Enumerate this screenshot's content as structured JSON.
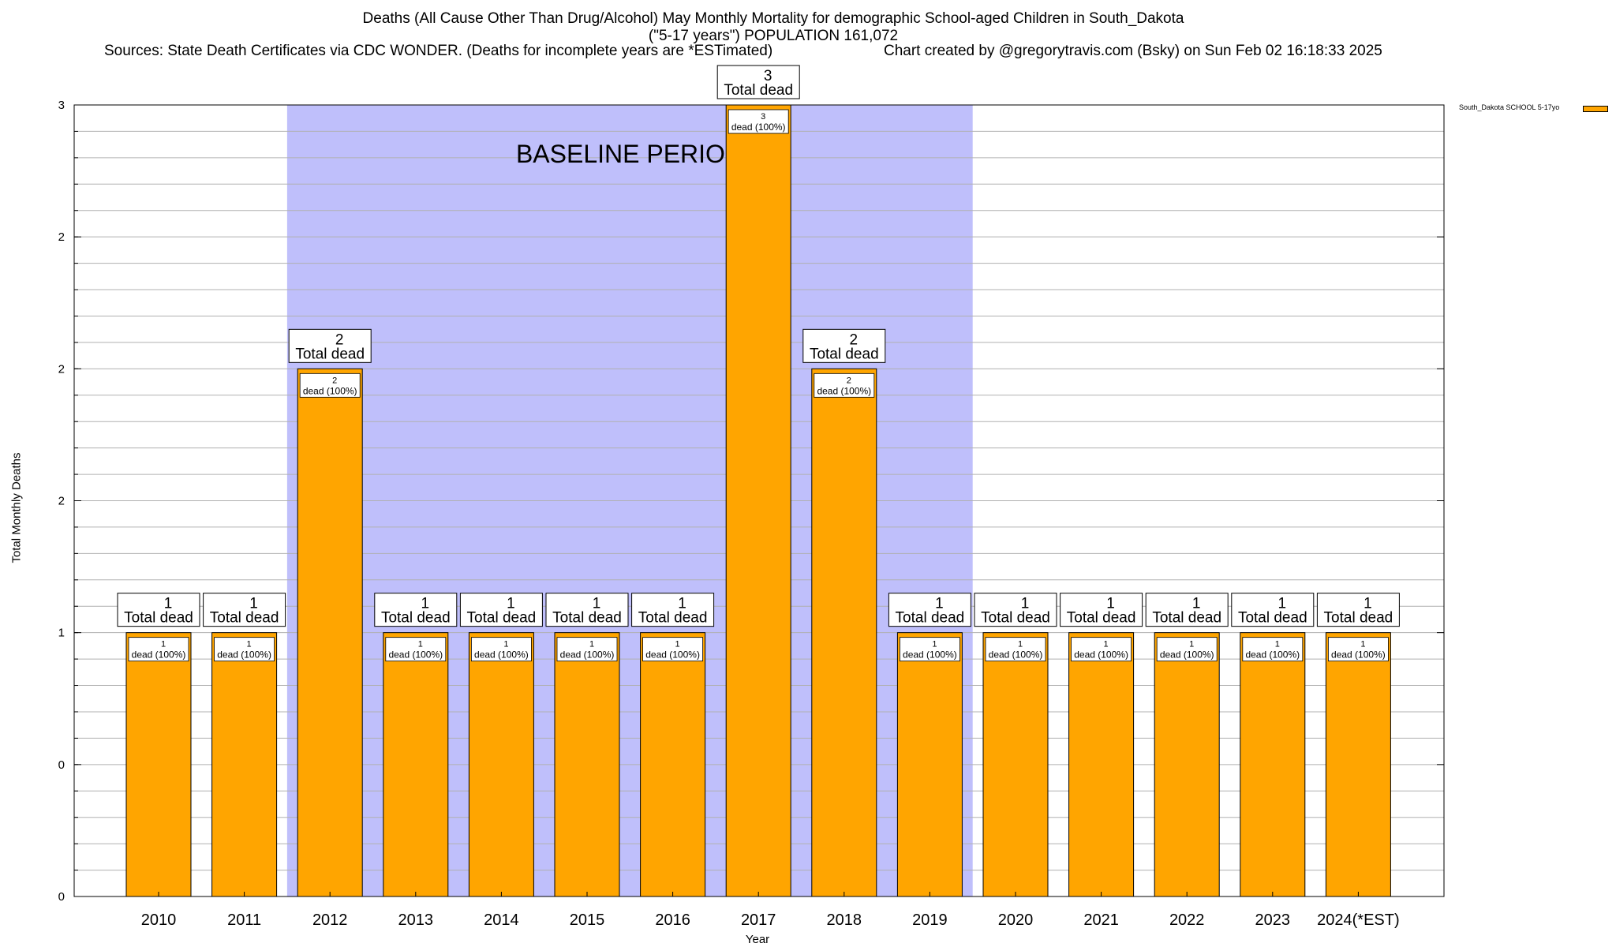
{
  "header": {
    "line1": "Deaths (All Cause Other Than Drug/Alcohol) May Monthly Mortality for demographic School-aged Children in South_Dakota",
    "line2": "(\"5-17 years\") POPULATION 161,072",
    "sources": "Sources: State Death Certificates via CDC WONDER. (Deaths for incomplete years are *ESTimated)",
    "credit": "Chart created by @gregorytravis.com (Bsky) on Sun Feb 02 16:18:33 2025"
  },
  "colors": {
    "bar": "#ffa500",
    "baseline": "#bfbffb",
    "grid": "#b0b0b0"
  },
  "chart_data": {
    "type": "bar",
    "title": "Deaths (All Cause Other Than Drug/Alcohol) May Monthly Mortality for demographic School-aged Children in South_Dakota",
    "xlabel": "Year",
    "ylabel": "Total Monthly Deaths",
    "ylim": [
      0,
      3
    ],
    "yticks": [
      {
        "value": 0,
        "label": "0"
      },
      {
        "value": 0.5,
        "label": "0"
      },
      {
        "value": 1,
        "label": "1"
      },
      {
        "value": 1.5,
        "label": "2"
      },
      {
        "value": 2,
        "label": "2"
      },
      {
        "value": 2.5,
        "label": "2"
      },
      {
        "value": 3,
        "label": "3"
      }
    ],
    "categories": [
      "2010",
      "2011",
      "2012",
      "2013",
      "2014",
      "2015",
      "2016",
      "2017",
      "2018",
      "2019",
      "2020",
      "2021",
      "2022",
      "2023",
      "2024(*EST)"
    ],
    "values": [
      1,
      1,
      2,
      1,
      1,
      1,
      1,
      3,
      2,
      1,
      1,
      1,
      1,
      1,
      1
    ],
    "totals": [
      "1",
      "1",
      "2",
      "1",
      "1",
      "1",
      "1",
      "3",
      "2",
      "1",
      "1",
      "1",
      "1",
      "1",
      "1"
    ],
    "total_suffix": "Total dead",
    "inner_suffix": "dead (100%)",
    "baseline": {
      "label": "BASELINE PERIOD",
      "from": "2012",
      "to": "2019"
    },
    "legend": {
      "label": "South_Dakota SCHOOL 5-17yo",
      "position": "top-right"
    }
  }
}
